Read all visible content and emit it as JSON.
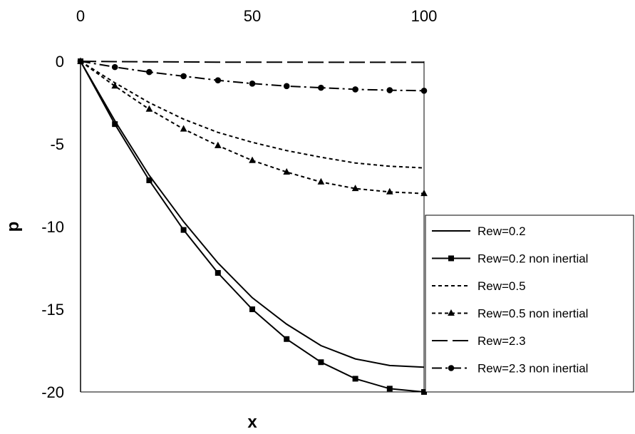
{
  "chart_data": {
    "type": "line",
    "title": "",
    "xlabel": "x",
    "ylabel": "p",
    "xlim": [
      0,
      100
    ],
    "ylim": [
      -20,
      0
    ],
    "x_ticks": [
      0,
      50,
      100
    ],
    "y_ticks": [
      0,
      -5,
      -10,
      -15,
      -20
    ],
    "x_axis_position": "top",
    "grid": false,
    "legend_position": "right",
    "series": [
      {
        "name": "Rew=0.2",
        "style": "solid",
        "marker": "none",
        "x": [
          0,
          10,
          20,
          30,
          40,
          50,
          60,
          70,
          80,
          90,
          100
        ],
        "y": [
          0,
          -3.6,
          -6.9,
          -9.7,
          -12.2,
          -14.3,
          -15.9,
          -17.2,
          -18.0,
          -18.4,
          -18.5
        ]
      },
      {
        "name": "Rew=0.2 non inertial",
        "style": "solid",
        "marker": "square",
        "x": [
          0,
          10,
          20,
          30,
          40,
          50,
          60,
          70,
          80,
          90,
          100
        ],
        "y": [
          0,
          -3.8,
          -7.2,
          -10.2,
          -12.8,
          -15.0,
          -16.8,
          -18.2,
          -19.2,
          -19.8,
          -20.0
        ]
      },
      {
        "name": "Rew=0.5",
        "style": "dotted",
        "marker": "none",
        "x": [
          0,
          10,
          20,
          30,
          40,
          50,
          60,
          70,
          80,
          90,
          100
        ],
        "y": [
          0,
          -1.3,
          -2.5,
          -3.5,
          -4.3,
          -4.9,
          -5.4,
          -5.8,
          -6.15,
          -6.35,
          -6.45
        ]
      },
      {
        "name": "Rew=0.5 non inertial",
        "style": "dotted",
        "marker": "triangle",
        "x": [
          0,
          10,
          20,
          30,
          40,
          50,
          60,
          70,
          80,
          90,
          100
        ],
        "y": [
          0,
          -1.5,
          -2.9,
          -4.1,
          -5.1,
          -6.0,
          -6.7,
          -7.3,
          -7.7,
          -7.9,
          -8.0
        ]
      },
      {
        "name": "Rew=2.3",
        "style": "longdash",
        "marker": "none",
        "x": [
          0,
          10,
          20,
          30,
          40,
          50,
          60,
          70,
          80,
          90,
          100
        ],
        "y": [
          0,
          -0.02,
          -0.03,
          -0.04,
          -0.05,
          -0.05,
          -0.05,
          -0.06,
          -0.06,
          -0.06,
          -0.06
        ]
      },
      {
        "name": "Rew=2.3 non inertial",
        "style": "dashdot",
        "marker": "circle",
        "x": [
          0,
          10,
          20,
          30,
          40,
          50,
          60,
          70,
          80,
          90,
          100
        ],
        "y": [
          0,
          -0.35,
          -0.65,
          -0.9,
          -1.15,
          -1.35,
          -1.5,
          -1.6,
          -1.7,
          -1.75,
          -1.78
        ]
      }
    ]
  }
}
